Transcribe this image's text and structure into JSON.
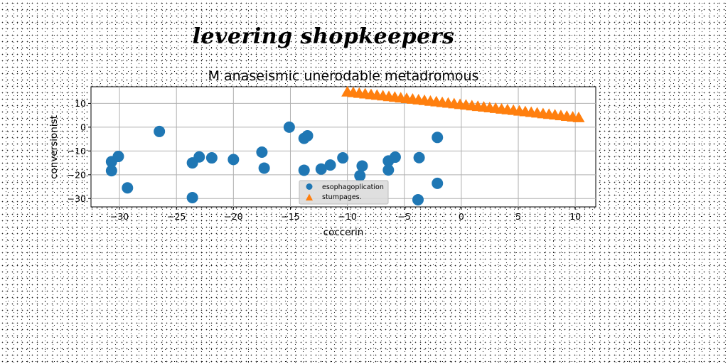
{
  "page": {
    "title": "levering shopkeepers"
  },
  "chart_data": {
    "type": "scatter",
    "title": "M anaseismic unerodable metadromous",
    "xlabel": "coccerin",
    "ylabel": "conversionist",
    "xlim": [
      -32.5,
      11.8
    ],
    "ylim": [
      -33.5,
      17
    ],
    "xticks": [
      -30,
      -25,
      -20,
      -15,
      -10,
      -5,
      0,
      5,
      10
    ],
    "yticks": [
      10,
      0,
      -10,
      -20,
      -30
    ],
    "xtick_labels": [
      "−30",
      "−25",
      "−20",
      "−15",
      "−10",
      "−5",
      "0",
      "5",
      "10"
    ],
    "ytick_labels": [
      "10",
      "0",
      "−10",
      "−20",
      "−30"
    ],
    "grid": true,
    "legend_position": "lower-center",
    "colors": {
      "esophagoplication": "#1f77b4",
      "stumpages": "#ff7f0e"
    },
    "series": [
      {
        "name": "esophagoplication",
        "marker": "circle",
        "color": "#1f77b4",
        "points": [
          [
            -30.7,
            -14.5
          ],
          [
            -30.1,
            -12.3
          ],
          [
            -30.7,
            -18.3
          ],
          [
            -29.3,
            -25.5
          ],
          [
            -26.5,
            -1.8
          ],
          [
            -23.6,
            -15.0
          ],
          [
            -23.0,
            -12.5
          ],
          [
            -23.6,
            -29.6
          ],
          [
            -21.9,
            -12.9
          ],
          [
            -20.0,
            -13.6
          ],
          [
            -17.5,
            -10.5
          ],
          [
            -17.3,
            -17.2
          ],
          [
            -15.1,
            0.0
          ],
          [
            -13.8,
            -4.7
          ],
          [
            -13.5,
            -3.6
          ],
          [
            -13.8,
            -18.1
          ],
          [
            -12.3,
            -17.6
          ],
          [
            -11.5,
            -15.9
          ],
          [
            -10.4,
            -12.9
          ],
          [
            -8.9,
            -20.4
          ],
          [
            -8.7,
            -16.3
          ],
          [
            -6.4,
            -14.2
          ],
          [
            -6.4,
            -18.0
          ],
          [
            -5.8,
            -12.6
          ],
          [
            -3.7,
            -12.8
          ],
          [
            -3.8,
            -30.5
          ],
          [
            -2.1,
            -4.3
          ],
          [
            -2.1,
            -23.6
          ]
        ]
      },
      {
        "name": "stumpages.",
        "marker": "triangle",
        "color": "#ff7f0e",
        "x_range": [
          -10.0,
          10.3
        ],
        "y_range": [
          14.8,
          4.0
        ],
        "count": 40
      }
    ]
  }
}
